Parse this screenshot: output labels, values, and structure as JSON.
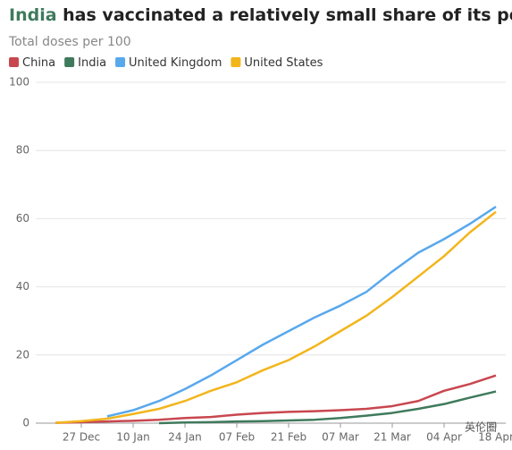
{
  "chart_data": {
    "type": "line",
    "title": {
      "highlight": "India",
      "rest": "has vaccinated a relatively small share of its population"
    },
    "subtitle": "Total doses per 100",
    "categories": [
      null,
      "27 Dec",
      null,
      "10 Jan",
      null,
      "24 Jan",
      null,
      "07 Feb",
      null,
      "21 Feb",
      null,
      "07 Mar",
      null,
      "21 Mar",
      null,
      "04 Apr",
      null,
      "18 Apr"
    ],
    "series": [
      {
        "name": "China",
        "color": "#c8474f",
        "values": [
          0.1,
          0.3,
          0.5,
          0.7,
          1.0,
          1.5,
          1.8,
          2.5,
          3.0,
          3.3,
          3.5,
          3.8,
          4.2,
          5.0,
          6.5,
          9.5,
          11.5,
          14.0
        ]
      },
      {
        "name": "India",
        "color": "#3f7a5c",
        "values": [
          null,
          null,
          null,
          null,
          0.0,
          0.2,
          0.3,
          0.5,
          0.6,
          0.8,
          1.0,
          1.5,
          2.2,
          3.0,
          4.2,
          5.6,
          7.5,
          9.3
        ]
      },
      {
        "name": "United Kingdom",
        "color": "#58a8ec",
        "values": [
          null,
          null,
          2.0,
          3.8,
          6.5,
          10,
          14,
          18.5,
          23,
          27,
          31,
          34.5,
          38.5,
          44.5,
          50,
          54,
          58.5,
          63.5
        ]
      },
      {
        "name": "United States",
        "color": "#f2b51c",
        "values": [
          0.1,
          0.6,
          1.3,
          2.7,
          4.2,
          6.5,
          9.5,
          12,
          15.5,
          18.5,
          22.5,
          27,
          31.5,
          37,
          43,
          49,
          56,
          62
        ]
      }
    ],
    "ylim": [
      0,
      100
    ],
    "yticks": [
      0,
      20,
      40,
      60,
      80,
      100
    ],
    "grid": true,
    "legend": "top-left",
    "watermark": "英伦圈"
  }
}
